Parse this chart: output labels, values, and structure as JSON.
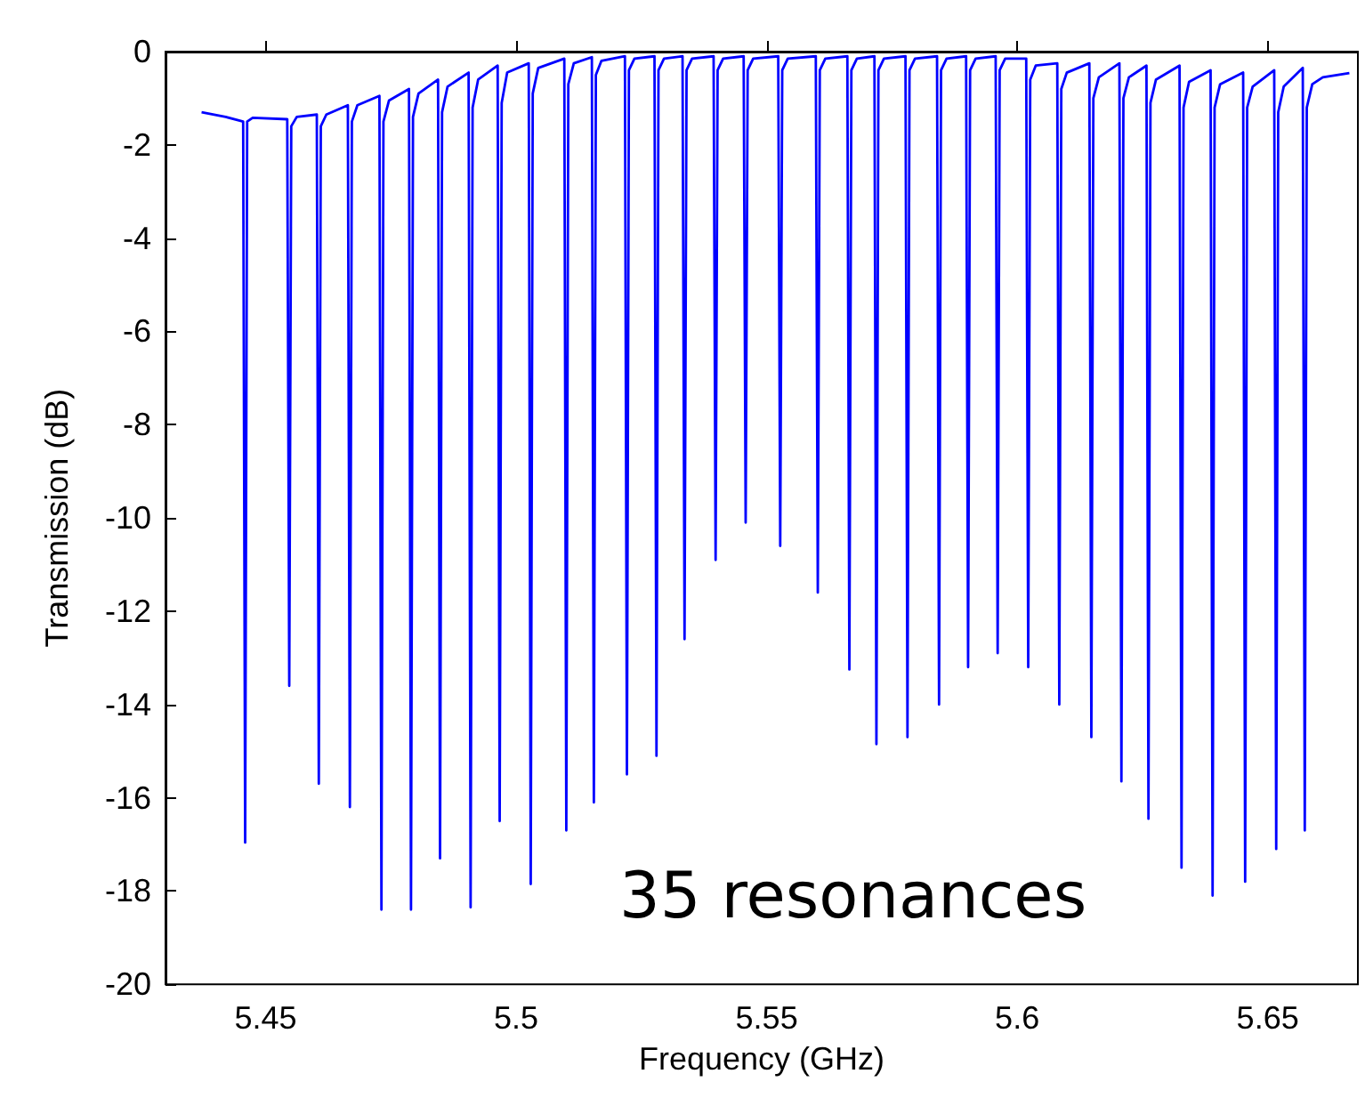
{
  "chart_data": {
    "type": "line",
    "xlabel": "Frequency (GHz)",
    "ylabel": "Transmission (dB)",
    "annotations": [
      "35 resonances"
    ],
    "xlim": [
      5.43,
      5.668
    ],
    "xticks": [
      5.45,
      5.5,
      5.55,
      5.6,
      5.65
    ],
    "ylim": [
      -20,
      0
    ],
    "yticks": [
      -20,
      -18,
      -16,
      -14,
      -12,
      -10,
      -8,
      -6,
      -4,
      -2,
      0
    ],
    "grid": false,
    "series": [
      {
        "color": "#0000ff",
        "x": [
          5.4372,
          5.442,
          5.4455,
          5.4459,
          5.4463,
          5.4474,
          5.4543,
          5.4547,
          5.4551,
          5.4562,
          5.4602,
          5.4606,
          5.461,
          5.4621,
          5.4664,
          5.4668,
          5.4672,
          5.4683,
          5.4727,
          5.4731,
          5.4735,
          5.4746,
          5.4786,
          5.479,
          5.4794,
          5.4805,
          5.4844,
          5.4848,
          5.4852,
          5.4863,
          5.4905,
          5.4909,
          5.4913,
          5.4924,
          5.4963,
          5.4967,
          5.4971,
          5.4982,
          5.5025,
          5.5029,
          5.5033,
          5.5044,
          5.5096,
          5.51,
          5.5104,
          5.5115,
          5.5151,
          5.5155,
          5.5159,
          5.517,
          5.5217,
          5.5221,
          5.5225,
          5.5236,
          5.5276,
          5.528,
          5.5284,
          5.5295,
          5.5332,
          5.5336,
          5.534,
          5.5351,
          5.5394,
          5.5398,
          5.5402,
          5.5413,
          5.5454,
          5.5458,
          5.5462,
          5.5473,
          5.5523,
          5.5527,
          5.5531,
          5.5542,
          5.5598,
          5.5602,
          5.5606,
          5.5617,
          5.5661,
          5.5665,
          5.5669,
          5.568,
          5.5715,
          5.5719,
          5.5723,
          5.5734,
          5.5777,
          5.5781,
          5.5785,
          5.5796,
          5.584,
          5.5844,
          5.5848,
          5.5859,
          5.5898,
          5.5902,
          5.5906,
          5.5917,
          5.5957,
          5.5961,
          5.5965,
          5.5976,
          5.6018,
          5.6022,
          5.6026,
          5.6037,
          5.608,
          5.6084,
          5.6088,
          5.6099,
          5.6144,
          5.6148,
          5.6152,
          5.6163,
          5.6204,
          5.6208,
          5.6212,
          5.6223,
          5.6258,
          5.6262,
          5.6266,
          5.6277,
          5.6324,
          5.6328,
          5.6332,
          5.6343,
          5.6386,
          5.639,
          5.6394,
          5.6405,
          5.6451,
          5.6455,
          5.6459,
          5.647,
          5.6513,
          5.6517,
          5.6521,
          5.6532,
          5.657,
          5.6574,
          5.6578,
          5.6589,
          5.661,
          5.6663
        ],
        "values": [
          -1.3,
          -1.4,
          -1.5,
          -16.96,
          -1.5,
          -1.42,
          -1.45,
          -13.6,
          -1.6,
          -1.4,
          -1.35,
          -15.7,
          -1.6,
          -1.35,
          -1.15,
          -16.2,
          -1.5,
          -1.15,
          -0.95,
          -18.4,
          -1.5,
          -1.05,
          -0.8,
          -18.4,
          -1.4,
          -0.9,
          -0.6,
          -17.3,
          -1.3,
          -0.75,
          -0.45,
          -18.35,
          -1.2,
          -0.6,
          -0.3,
          -16.5,
          -1.1,
          -0.45,
          -0.25,
          -17.85,
          -0.9,
          -0.35,
          -0.15,
          -16.7,
          -0.7,
          -0.25,
          -0.12,
          -16.1,
          -0.5,
          -0.2,
          -0.1,
          -15.5,
          -0.4,
          -0.15,
          -0.1,
          -15.1,
          -0.4,
          -0.15,
          -0.1,
          -12.6,
          -0.4,
          -0.15,
          -0.1,
          -10.9,
          -0.4,
          -0.15,
          -0.1,
          -10.1,
          -0.4,
          -0.15,
          -0.1,
          -10.6,
          -0.4,
          -0.15,
          -0.1,
          -11.6,
          -0.4,
          -0.15,
          -0.1,
          -13.25,
          -0.4,
          -0.15,
          -0.1,
          -14.85,
          -0.4,
          -0.15,
          -0.1,
          -14.7,
          -0.4,
          -0.15,
          -0.1,
          -14.0,
          -0.4,
          -0.15,
          -0.1,
          -13.2,
          -0.4,
          -0.15,
          -0.1,
          -12.9,
          -0.4,
          -0.15,
          -0.15,
          -13.2,
          -0.6,
          -0.3,
          -0.25,
          -14.0,
          -0.8,
          -0.45,
          -0.25,
          -14.7,
          -1.0,
          -0.55,
          -0.25,
          -15.65,
          -1.0,
          -0.55,
          -0.3,
          -16.45,
          -1.1,
          -0.6,
          -0.3,
          -17.5,
          -1.2,
          -0.65,
          -0.4,
          -18.1,
          -1.2,
          -0.7,
          -0.45,
          -17.8,
          -1.2,
          -0.75,
          -0.4,
          -17.1,
          -1.3,
          -0.75,
          -0.35,
          -16.7,
          -1.2,
          -0.7,
          -0.55,
          -0.46
        ]
      }
    ]
  }
}
